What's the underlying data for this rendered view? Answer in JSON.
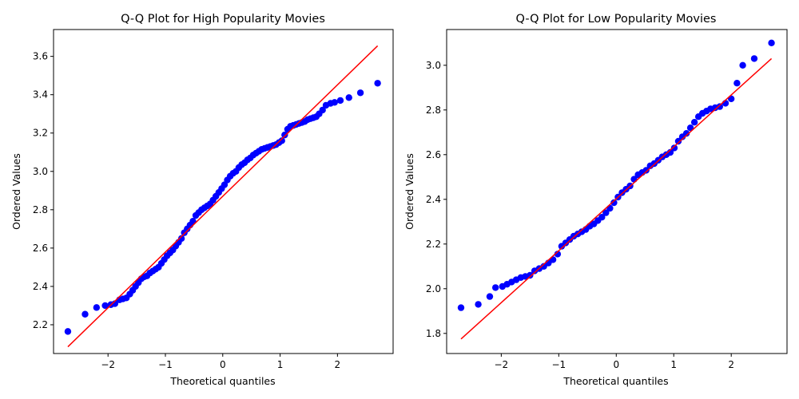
{
  "chart_data": [
    {
      "type": "scatter",
      "title": "Q-Q Plot for High Popularity Movies",
      "xlabel": "Theoretical quantiles",
      "ylabel": "Ordered Values",
      "xlim": [
        -2.95,
        2.97
      ],
      "ylim": [
        2.05,
        3.74
      ],
      "xticks": [
        -2,
        -1,
        0,
        1,
        2
      ],
      "xtick_labels": [
        "−2",
        "−1",
        "0",
        "1",
        "2"
      ],
      "yticks": [
        2.2,
        2.4,
        2.6,
        2.8,
        3.0,
        3.2,
        3.4,
        3.6
      ],
      "ytick_labels": [
        "2.2",
        "2.4",
        "2.6",
        "2.8",
        "3.0",
        "3.2",
        "3.4",
        "3.6"
      ],
      "point_color": "#0000ff",
      "line_color": "#ff0000",
      "fit_line": {
        "x": [
          -2.7,
          2.7
        ],
        "y": [
          2.085,
          3.655
        ]
      },
      "series": [
        {
          "x": [
            -2.7,
            -2.4,
            -2.2,
            -2.05,
            -1.95,
            -1.88,
            -1.8,
            -1.74,
            -1.68,
            -1.62,
            -1.57,
            -1.52,
            -1.47,
            -1.42,
            -1.37,
            -1.32,
            -1.27,
            -1.22,
            -1.17,
            -1.12,
            -1.07,
            -1.02,
            -0.97,
            -0.92,
            -0.87,
            -0.82,
            -0.77,
            -0.72,
            -0.67,
            -0.62,
            -0.57,
            -0.52,
            -0.47,
            -0.42,
            -0.37,
            -0.32,
            -0.27,
            -0.22,
            -0.17,
            -0.12,
            -0.07,
            -0.02,
            0.03,
            0.08,
            0.13,
            0.18,
            0.23,
            0.28,
            0.33,
            0.38,
            0.43,
            0.48,
            0.53,
            0.58,
            0.63,
            0.68,
            0.73,
            0.78,
            0.83,
            0.88,
            0.93,
            0.98,
            1.03,
            1.08,
            1.13,
            1.18,
            1.23,
            1.28,
            1.33,
            1.38,
            1.43,
            1.48,
            1.53,
            1.58,
            1.63,
            1.68,
            1.74,
            1.8,
            1.88,
            1.95,
            2.05,
            2.2,
            2.4,
            2.7
          ],
          "y": [
            2.165,
            2.255,
            2.29,
            2.3,
            2.305,
            2.31,
            2.33,
            2.335,
            2.34,
            2.36,
            2.38,
            2.4,
            2.42,
            2.44,
            2.45,
            2.455,
            2.47,
            2.48,
            2.49,
            2.5,
            2.52,
            2.54,
            2.56,
            2.575,
            2.59,
            2.61,
            2.63,
            2.65,
            2.68,
            2.7,
            2.72,
            2.74,
            2.77,
            2.785,
            2.8,
            2.81,
            2.82,
            2.83,
            2.85,
            2.87,
            2.89,
            2.91,
            2.93,
            2.955,
            2.975,
            2.99,
            3.0,
            3.02,
            3.035,
            3.045,
            3.06,
            3.07,
            3.085,
            3.095,
            3.105,
            3.115,
            3.12,
            3.125,
            3.13,
            3.135,
            3.14,
            3.15,
            3.16,
            3.19,
            3.22,
            3.235,
            3.24,
            3.245,
            3.25,
            3.255,
            3.26,
            3.27,
            3.275,
            3.28,
            3.285,
            3.3,
            3.32,
            3.345,
            3.355,
            3.36,
            3.37,
            3.385,
            3.41,
            3.46
          ]
        }
      ]
    },
    {
      "type": "scatter",
      "title": "Q-Q Plot for Low Popularity Movies",
      "xlabel": "Theoretical quantiles",
      "ylabel": "Ordered Values",
      "xlim": [
        -2.95,
        2.97
      ],
      "ylim": [
        1.71,
        3.16
      ],
      "xticks": [
        -2,
        -1,
        0,
        1,
        2
      ],
      "xtick_labels": [
        "−2",
        "−1",
        "0",
        "1",
        "2"
      ],
      "yticks": [
        1.8,
        2.0,
        2.2,
        2.4,
        2.6,
        2.8,
        3.0
      ],
      "ytick_labels": [
        "1.8",
        "2.0",
        "2.2",
        "2.4",
        "2.6",
        "2.8",
        "3.0"
      ],
      "point_color": "#0000ff",
      "line_color": "#ff0000",
      "fit_line": {
        "x": [
          -2.7,
          2.7
        ],
        "y": [
          1.775,
          3.03
        ]
      },
      "series": [
        {
          "x": [
            -2.7,
            -2.4,
            -2.2,
            -2.1,
            -1.98,
            -1.9,
            -1.82,
            -1.74,
            -1.66,
            -1.58,
            -1.5,
            -1.42,
            -1.34,
            -1.26,
            -1.18,
            -1.1,
            -1.02,
            -0.95,
            -0.88,
            -0.81,
            -0.74,
            -0.67,
            -0.6,
            -0.53,
            -0.46,
            -0.39,
            -0.32,
            -0.25,
            -0.18,
            -0.11,
            -0.04,
            0.03,
            0.1,
            0.17,
            0.24,
            0.31,
            0.38,
            0.45,
            0.52,
            0.59,
            0.66,
            0.73,
            0.8,
            0.87,
            0.94,
            1.01,
            1.08,
            1.15,
            1.22,
            1.29,
            1.36,
            1.43,
            1.5,
            1.57,
            1.64,
            1.72,
            1.8,
            1.9,
            2.0,
            2.1,
            2.2,
            2.4,
            2.7
          ],
          "y": [
            1.915,
            1.93,
            1.965,
            2.005,
            2.01,
            2.02,
            2.03,
            2.04,
            2.05,
            2.055,
            2.06,
            2.08,
            2.09,
            2.1,
            2.115,
            2.13,
            2.155,
            2.19,
            2.205,
            2.22,
            2.235,
            2.245,
            2.255,
            2.265,
            2.28,
            2.29,
            2.305,
            2.32,
            2.34,
            2.36,
            2.385,
            2.41,
            2.43,
            2.445,
            2.46,
            2.49,
            2.51,
            2.52,
            2.53,
            2.55,
            2.56,
            2.575,
            2.59,
            2.6,
            2.61,
            2.63,
            2.66,
            2.68,
            2.695,
            2.72,
            2.745,
            2.77,
            2.785,
            2.795,
            2.805,
            2.81,
            2.815,
            2.83,
            2.85,
            2.92,
            3.0,
            3.03,
            3.1
          ]
        }
      ]
    }
  ]
}
